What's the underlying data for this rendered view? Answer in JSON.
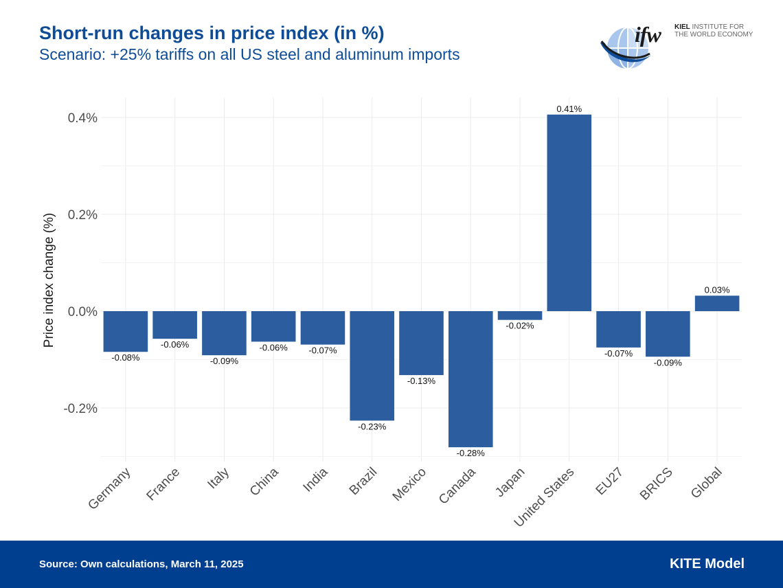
{
  "header": {
    "title": "Short-run changes in price index (in %)",
    "subtitle": "Scenario: +25% tariffs on all US steel and aluminum imports"
  },
  "logo": {
    "mark": "ifw",
    "institute_bold": "KIEL",
    "institute_line1": " INSTITUTE FOR",
    "institute_line2": "THE WORLD ECONOMY"
  },
  "footer": {
    "source": "Source: Own calculations, March 11, 2025",
    "model": "KITE Model"
  },
  "colors": {
    "bar": "#2c5d9f",
    "title": "#0e4c97",
    "footer_bg": "#003e8f",
    "grid": "#ebebeb"
  },
  "chart_data": {
    "type": "bar",
    "ylabel": "Price index change (%)",
    "xlabel": "",
    "categories": [
      "Germany",
      "France",
      "Italy",
      "China",
      "India",
      "Brazil",
      "Mexico",
      "Canada",
      "Japan",
      "United States",
      "EU27",
      "BRICS",
      "Global"
    ],
    "values": [
      -0.084,
      -0.057,
      -0.091,
      -0.063,
      -0.069,
      -0.226,
      -0.132,
      -0.281,
      -0.018,
      0.406,
      -0.075,
      -0.094,
      0.032
    ],
    "data_labels": [
      "-0.08%",
      "-0.06%",
      "-0.09%",
      "-0.06%",
      "-0.07%",
      "-0.23%",
      "-0.13%",
      "-0.28%",
      "-0.02%",
      "0.41%",
      "-0.07%",
      "-0.09%",
      "0.03%"
    ],
    "yticks": [
      -0.2,
      0.0,
      0.2,
      0.4
    ],
    "ytick_labels": [
      "-0.2%",
      "0.0%",
      "0.2%",
      "0.4%"
    ],
    "ylim": [
      -0.3,
      0.44
    ],
    "grid": true,
    "legend": "none"
  }
}
